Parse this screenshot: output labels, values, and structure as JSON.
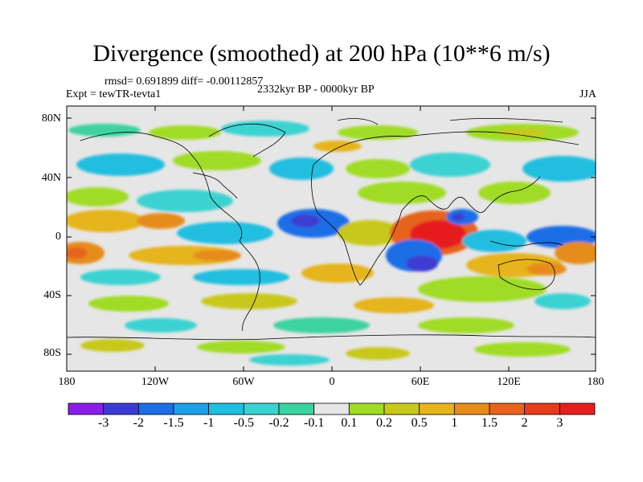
{
  "title": "Divergence (smoothed) at 200 hPa (10**6 m/s)",
  "stats": "rmsd= 0.691899 diff= -0.00112857",
  "experiment": "Expt = tewTR-tevta1",
  "period": "2332kyr BP - 0000kyr BP",
  "season": "JJA",
  "lat_labels": [
    "80N",
    "40N",
    "0",
    "40S",
    "80S"
  ],
  "lon_labels": [
    "180",
    "120W",
    "60W",
    "0",
    "60E",
    "120E",
    "180"
  ],
  "colorbar": {
    "labels": [
      "-3",
      "-2",
      "-1.5",
      "-1",
      "-0.5",
      "-0.2",
      "-0.1",
      "0.1",
      "0.2",
      "0.5",
      "1",
      "1.5",
      "2",
      "3"
    ],
    "colors": [
      "#8a1ee6",
      "#3c3cd2",
      "#1e6ee6",
      "#1ea0e6",
      "#20bee0",
      "#3cd2d2",
      "#3cd2a0",
      "#e6e6e6",
      "#a0dc28",
      "#c8c81e",
      "#e6b41e",
      "#e68c1e",
      "#e6641e",
      "#e63c1e",
      "#e61e1e"
    ]
  },
  "map_colors": {
    "background": "#e6e6e6",
    "coast": "#000000"
  }
}
